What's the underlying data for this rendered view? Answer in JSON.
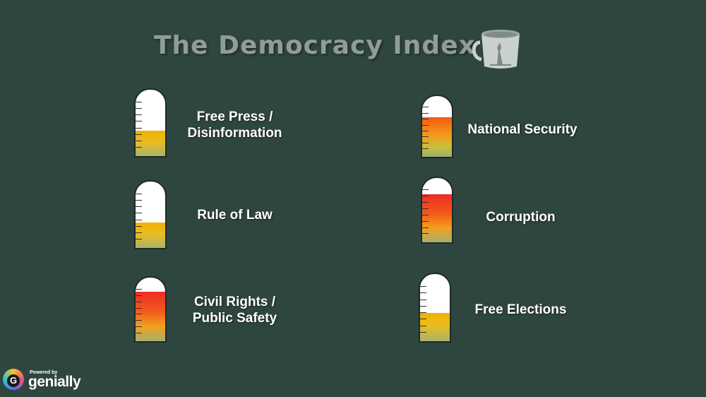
{
  "title": "The Democracy Index",
  "icons": {
    "mug": "liberty-mug-icon",
    "logo": "genially-logo-icon"
  },
  "colors": {
    "background": "#2f453f",
    "title": "#8f9c97",
    "low": "#f2b100",
    "mid": "#f25a12",
    "high": "#ee2c28"
  },
  "gauges": [
    {
      "label": "Free Press /\nDisinformation",
      "level": 0.38
    },
    {
      "label": "National Security",
      "level": 0.65
    },
    {
      "label": "Rule of Law",
      "level": 0.38
    },
    {
      "label": "Corruption",
      "level": 0.75
    },
    {
      "label": "Civil Rights /\nPublic Safety",
      "level": 0.78
    },
    {
      "label": "Free Elections",
      "level": 0.42
    }
  ],
  "footer": {
    "powered_by": "Powered by",
    "brand": "genially"
  }
}
